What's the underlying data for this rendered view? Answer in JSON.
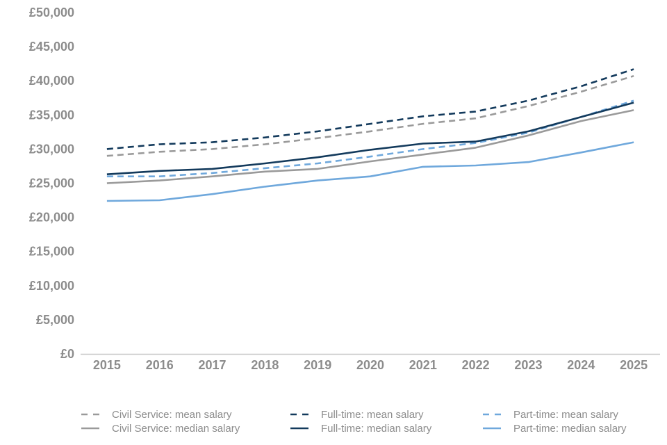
{
  "chart_data": {
    "type": "line",
    "title": "",
    "xlabel": "",
    "ylabel": "",
    "x": [
      "2015",
      "2016",
      "2017",
      "2018",
      "2019",
      "2020",
      "2021",
      "2022",
      "2023",
      "2024",
      "2025"
    ],
    "ylim": [
      0,
      50000
    ],
    "yticks": [
      "£0",
      "£5,000",
      "£10,000",
      "£15,000",
      "£20,000",
      "£25,000",
      "£30,000",
      "£35,000",
      "£40,000",
      "£45,000",
      "£50,000"
    ],
    "grid": false,
    "legend_position": "bottom",
    "series": [
      {
        "name": "Civil Service: mean salary",
        "color": "#9a9a9a",
        "dash": "dashed",
        "values": [
          29000,
          29600,
          30000,
          30700,
          31600,
          32600,
          33700,
          34500,
          36300,
          38400,
          40700
        ]
      },
      {
        "name": "Full-time: mean salary",
        "color": "#133a5c",
        "dash": "dashed",
        "values": [
          30000,
          30700,
          31000,
          31700,
          32600,
          33700,
          34800,
          35500,
          37100,
          39200,
          41700
        ]
      },
      {
        "name": "Part-time: mean salary",
        "color": "#6fa8dc",
        "dash": "dashed",
        "values": [
          26000,
          26000,
          26500,
          27200,
          27900,
          28900,
          30000,
          30900,
          32400,
          34700,
          37100
        ]
      },
      {
        "name": "Civil Service: median salary",
        "color": "#9a9a9a",
        "dash": "solid",
        "values": [
          25000,
          25400,
          26000,
          26700,
          27100,
          28200,
          29200,
          30200,
          32000,
          34100,
          35700
        ]
      },
      {
        "name": "Full-time: median salary",
        "color": "#133a5c",
        "dash": "solid",
        "values": [
          26300,
          26800,
          27100,
          27900,
          28800,
          29900,
          30800,
          31100,
          32600,
          34700,
          36800
        ]
      },
      {
        "name": "Part-time: median salary",
        "color": "#6fa8dc",
        "dash": "solid",
        "values": [
          22400,
          22500,
          23400,
          24500,
          25400,
          26000,
          27400,
          27600,
          28100,
          29500,
          31000
        ]
      }
    ]
  }
}
